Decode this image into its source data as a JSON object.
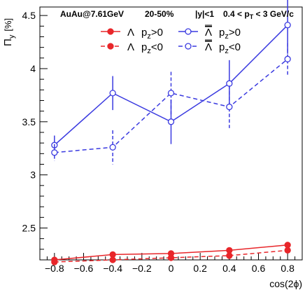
{
  "chart_data": {
    "type": "line",
    "title_left": "AuAu@7.61GeV",
    "title_centrality": "20-50%",
    "title_rapidity": "|y|<1",
    "title_pt_prefix": "0.4 < p",
    "title_pt_sub": "T",
    "title_pt_suffix": " < 3 GeV/c",
    "ylabel_main": "Π",
    "ylabel_sub": "y",
    "ylabel_unit": "[%]",
    "xlabel": "cos(2ϕ)",
    "xlim": [
      -0.9,
      0.9
    ],
    "ylim": [
      2.2,
      4.58
    ],
    "x": [
      -0.8,
      -0.4,
      0.0,
      0.4,
      0.8
    ],
    "xticks": [
      "−0.8",
      "−0.6",
      "−0.4",
      "−0.2",
      "0",
      "0.2",
      "0.4",
      "0.6",
      "0.8"
    ],
    "yticks": [
      "2.5",
      "3",
      "3.5",
      "4",
      "4.5"
    ],
    "series": [
      {
        "particle": "Λ",
        "bar": false,
        "pz": "p",
        "pz_sub": "z",
        "cond": ">0",
        "color": "#e8262a",
        "marker": "filled",
        "dash": false,
        "values": [
          2.2,
          2.25,
          2.26,
          2.29,
          2.34
        ],
        "errors": [
          0.01,
          0.01,
          0.01,
          0.01,
          0.01
        ]
      },
      {
        "particle": "Λ",
        "bar": false,
        "pz": "p",
        "pz_sub": "z",
        "cond": "<0",
        "color": "#e8262a",
        "marker": "filled",
        "dash": true,
        "values": [
          2.18,
          2.2,
          2.22,
          2.24,
          2.29
        ],
        "errors": [
          0.01,
          0.01,
          0.01,
          0.01,
          0.01
        ]
      },
      {
        "particle": "Λ",
        "bar": true,
        "pz": "p",
        "pz_sub": "z",
        "cond": ">0",
        "color": "#3a3ae0",
        "marker": "open",
        "dash": false,
        "values": [
          3.28,
          3.77,
          3.5,
          3.86,
          4.41
        ],
        "errors": [
          0.09,
          0.16,
          0.21,
          0.22,
          0.27
        ]
      },
      {
        "particle": "Λ",
        "bar": true,
        "pz": "p",
        "pz_sub": "z",
        "cond": "<0",
        "color": "#3a3ae0",
        "marker": "open",
        "dash": true,
        "values": [
          3.21,
          3.26,
          3.77,
          3.64,
          4.09
        ],
        "errors": [
          0.08,
          0.16,
          0.2,
          0.2,
          0.15
        ]
      }
    ],
    "legend_position": "top"
  }
}
